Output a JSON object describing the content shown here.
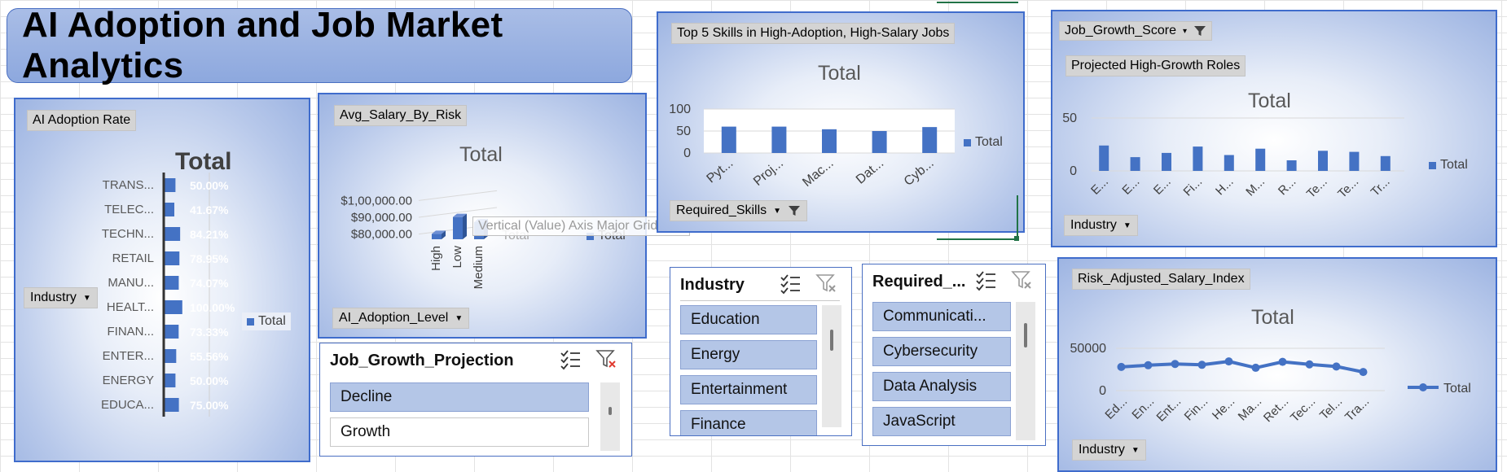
{
  "title": "AI Adoption and Job Market Analytics",
  "colors": {
    "bar": "#4472c4",
    "panel_border": "#3f6ccc",
    "slicer_selected": "#b4c6e7"
  },
  "p1": {
    "field_label": "AI Adoption Rate",
    "row_field": "Industry",
    "chart_title": "Total",
    "legend": "Total",
    "chart_data": {
      "type": "bar",
      "orientation": "horizontal",
      "categories": [
        "TRANS...",
        "TELEC...",
        "TECHN...",
        "RETAIL",
        "MANU...",
        "HEALT...",
        "FINAN...",
        "ENTER...",
        "ENERGY",
        "EDUCA..."
      ],
      "values": [
        50.0,
        41.67,
        84.21,
        78.95,
        74.07,
        100.0,
        73.33,
        55.56,
        50.0,
        75.0
      ],
      "labels": [
        "50.00%",
        "41.67%",
        "84.21%",
        "78.95%",
        "74.07%",
        "100.00%",
        "73.33%",
        "55.56%",
        "50.00%",
        "75.00%"
      ],
      "title": "Total"
    }
  },
  "p2": {
    "field_label": "Avg_Salary_By_Risk",
    "row_field": "AI_Adoption_Level",
    "chart_title": "Total",
    "legend": "Total",
    "series_label": "Total",
    "chart_data": {
      "type": "bar",
      "categories": [
        "High",
        "Low",
        "Medium"
      ],
      "values": [
        85000,
        95000,
        92000
      ],
      "yticks": [
        "$80,000.00",
        "$90,000.00",
        "$1,00,000.00"
      ],
      "ylim": [
        75000,
        105000
      ],
      "title": "Total"
    }
  },
  "tooltip": "Vertical (Value) Axis Major Gridlines",
  "p3": {
    "field_label": "Top 5 Skills in High-Adoption, High-Salary Jobs",
    "row_field": "Required_Skills",
    "chart_title": "Total",
    "legend": "Total",
    "chart_data": {
      "type": "bar",
      "categories": [
        "Pyt...",
        "Proj...",
        "Mac...",
        "Dat...",
        "Cyb..."
      ],
      "values": [
        60,
        60,
        54,
        50,
        59
      ],
      "yticks": [
        "0",
        "50",
        "100"
      ],
      "ylim": [
        0,
        100
      ],
      "title": "Total"
    }
  },
  "p4": {
    "filter_field": "Job_Growth_Score",
    "field_label": "Projected High-Growth Roles",
    "row_field": "Industry",
    "chart_title": "Total",
    "legend": "Total",
    "chart_data": {
      "type": "bar",
      "categories": [
        "E...",
        "E...",
        "E...",
        "Fi...",
        "H...",
        "M...",
        "R...",
        "Te...",
        "Te...",
        "Tr..."
      ],
      "values": [
        24,
        13,
        17,
        23,
        15,
        21,
        10,
        19,
        18,
        14
      ],
      "yticks": [
        "0",
        "50"
      ],
      "ylim": [
        0,
        60
      ],
      "title": "Total"
    }
  },
  "p5": {
    "field_label": "Risk_Adjusted_Salary_Index",
    "row_field": "Industry",
    "chart_title": "Total",
    "legend": "Total",
    "chart_data": {
      "type": "line",
      "categories": [
        "Ed...",
        "En...",
        "Ent...",
        "Fin...",
        "He...",
        "Ma...",
        "Ret...",
        "Tec...",
        "Tel...",
        "Tra..."
      ],
      "values": [
        28000,
        30000,
        31500,
        30500,
        34500,
        27000,
        34000,
        31000,
        28500,
        22000
      ],
      "yticks": [
        "0",
        "50000"
      ],
      "ylim": [
        0,
        60000
      ],
      "title": "Total"
    }
  },
  "slicer_jgp": {
    "header": "Job_Growth_Projection",
    "items": [
      "Decline",
      "Growth"
    ]
  },
  "slicer_ind": {
    "header": "Industry",
    "items": [
      "Education",
      "Energy",
      "Entertainment",
      "Finance"
    ]
  },
  "slicer_req": {
    "header": "Required_...",
    "items": [
      "Communicati...",
      "Cybersecurity",
      "Data Analysis",
      "JavaScript"
    ]
  }
}
